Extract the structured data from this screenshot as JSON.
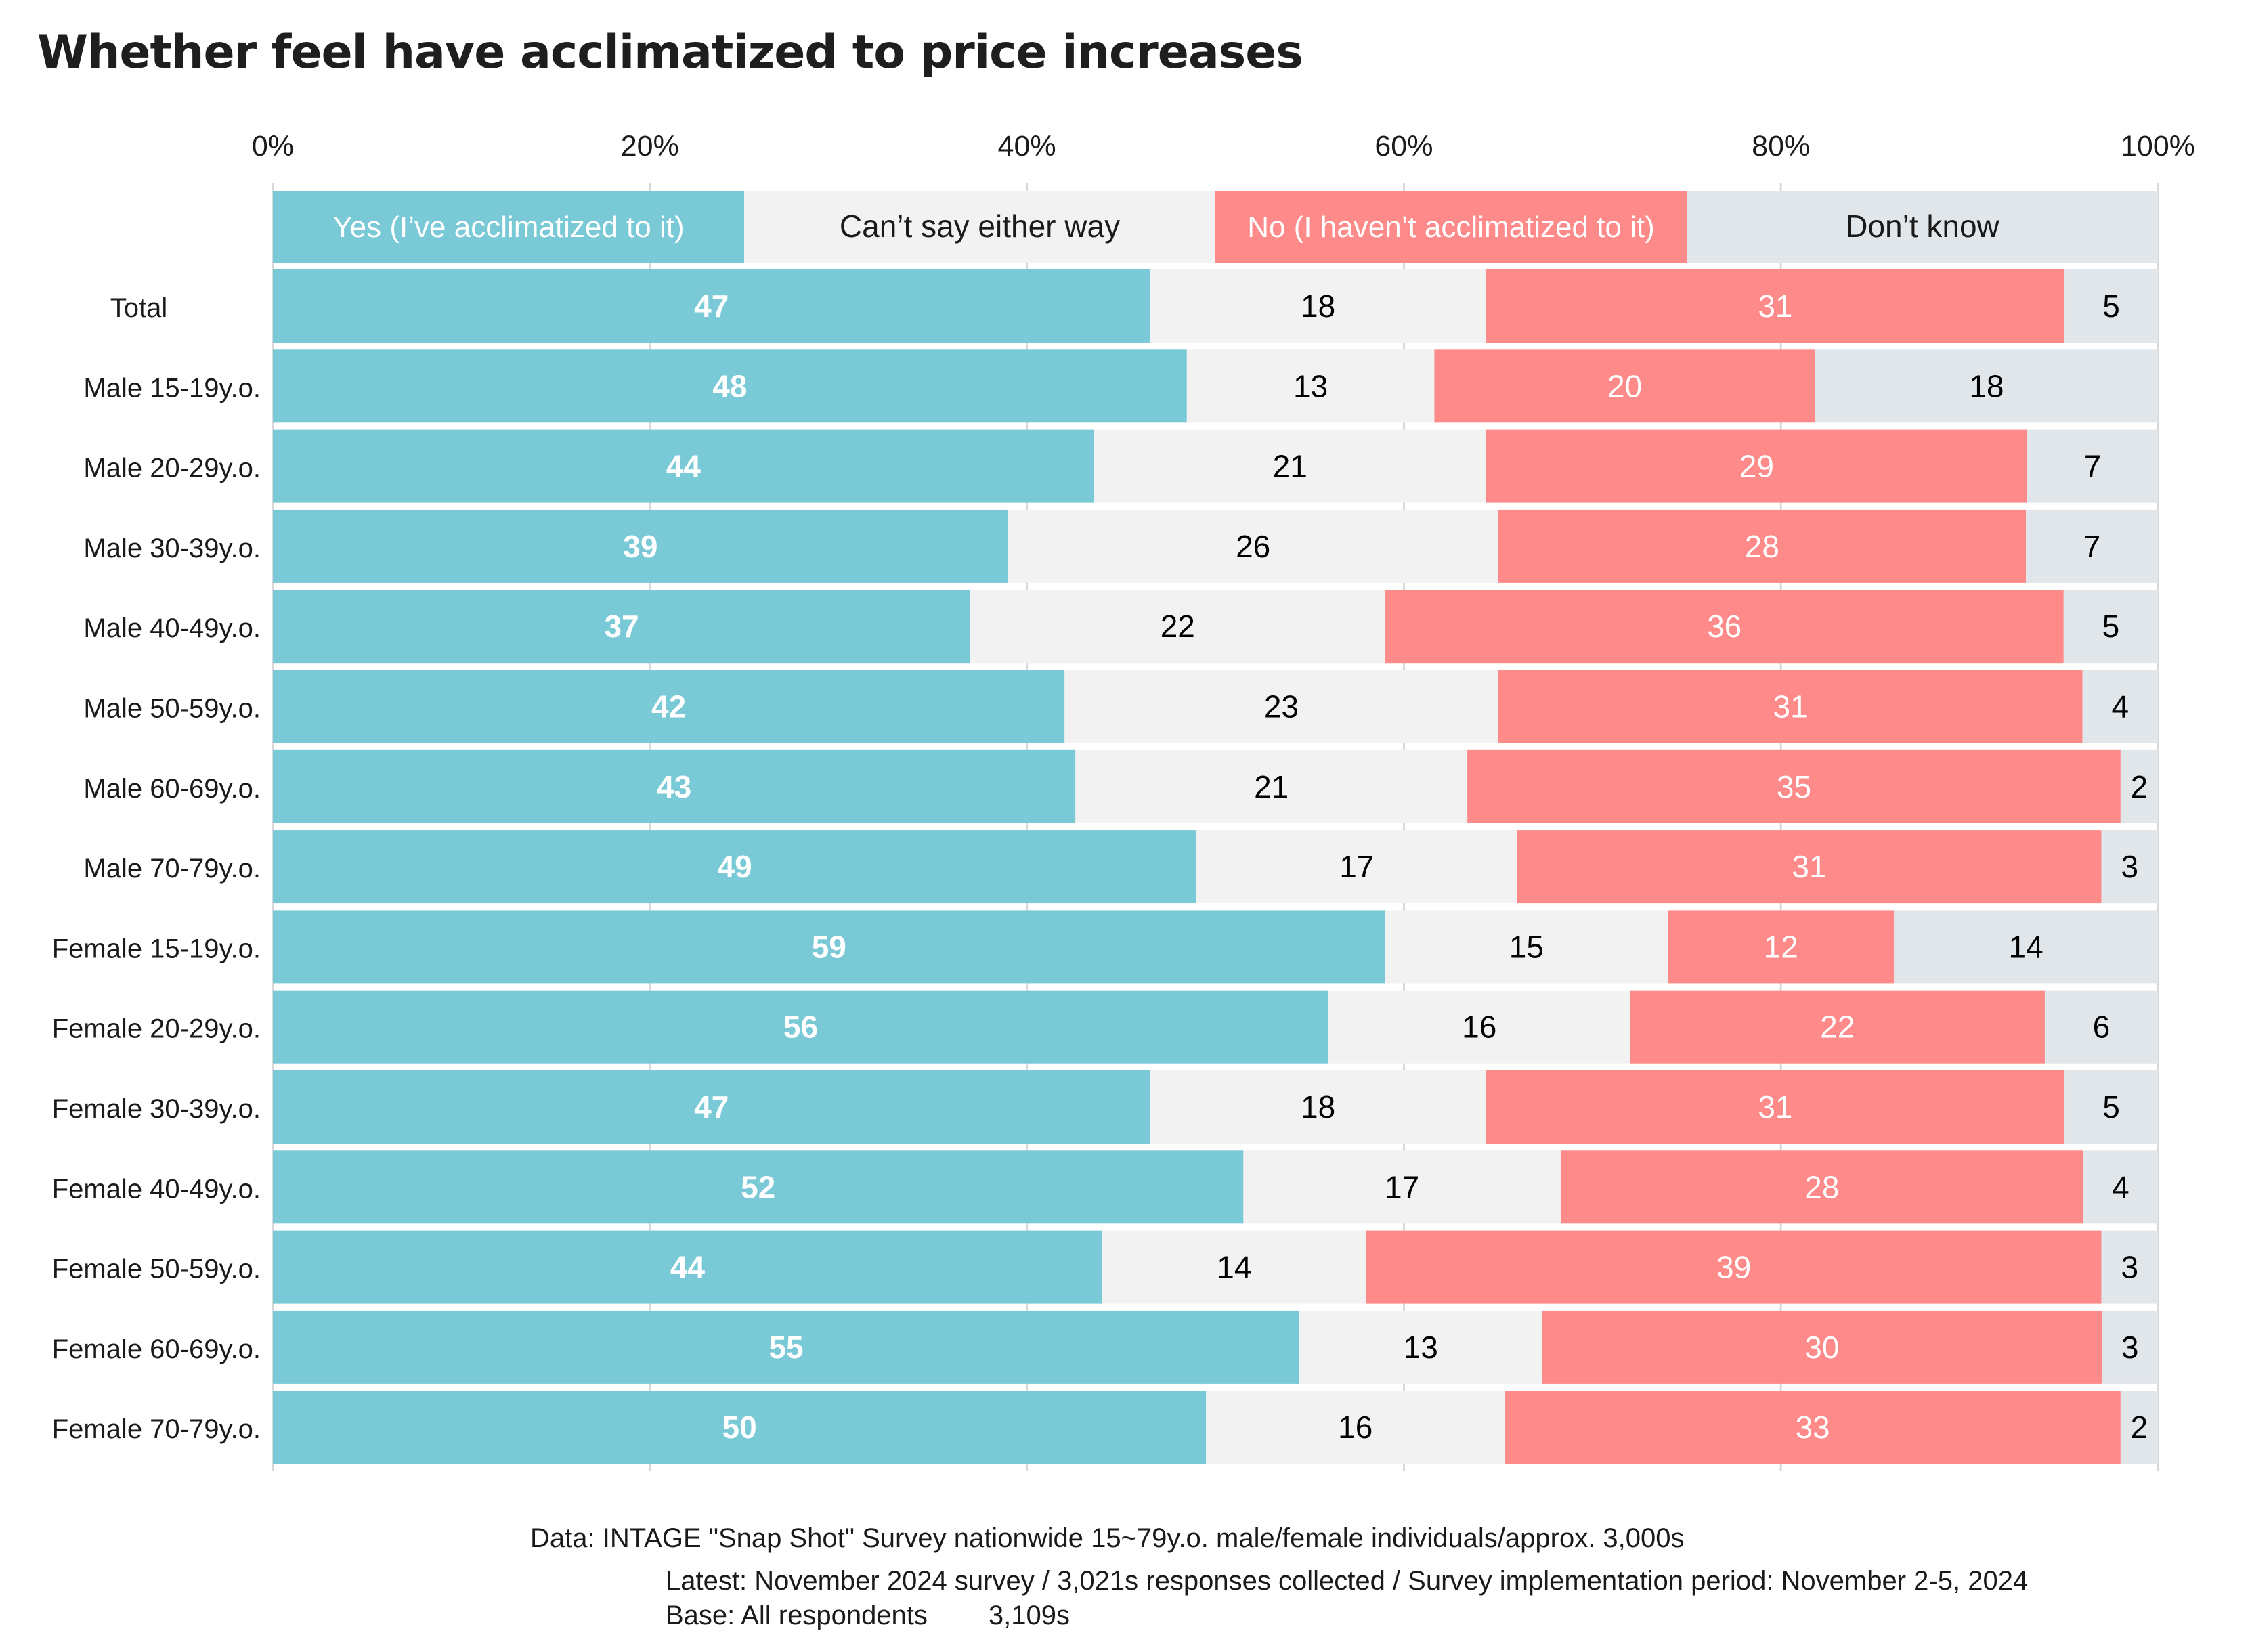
{
  "title": "Whether feel have acclimatized to price increases",
  "chart_data": {
    "type": "bar",
    "orientation": "horizontal",
    "stacked": true,
    "percent_stacked": true,
    "title": "Whether feel have acclimatized to price increases",
    "xlabel": "",
    "ylabel": "",
    "xlim": [
      0,
      100
    ],
    "x_ticks": [
      "0%",
      "20%",
      "40%",
      "60%",
      "80%",
      "100%"
    ],
    "x_tick_values": [
      0,
      20,
      40,
      60,
      80,
      100
    ],
    "grid": true,
    "legend_position": "top",
    "categories": [
      "Total",
      "Male 15-19y.o.",
      "Male 20-29y.o.",
      "Male 30-39y.o.",
      "Male 40-49y.o.",
      "Male 50-59y.o.",
      "Male 60-69y.o.",
      "Male 70-79y.o.",
      "Female 15-19y.o.",
      "Female 20-29y.o.",
      "Female 30-39y.o.",
      "Female 40-49y.o.",
      "Female 50-59y.o.",
      "Female 60-69y.o.",
      "Female 70-79y.o."
    ],
    "series": [
      {
        "name": "Yes (I’ve acclimatized to it)",
        "color": "#79c9d6",
        "label_color": "#ffffff",
        "label_bold": true,
        "values": [
          47,
          48,
          44,
          39,
          37,
          42,
          43,
          49,
          59,
          56,
          47,
          52,
          44,
          55,
          50
        ]
      },
      {
        "name": "Can’t say either way",
        "color": "#f2f2f2",
        "label_color": "#000000",
        "label_bold": false,
        "values": [
          18,
          13,
          21,
          26,
          22,
          23,
          21,
          17,
          15,
          16,
          18,
          17,
          14,
          13,
          16
        ]
      },
      {
        "name": "No (I haven’t acclimatized to it)",
        "color": "#ff8a8a",
        "label_color": "#ffffff",
        "label_bold": false,
        "values": [
          31,
          20,
          29,
          28,
          36,
          31,
          35,
          31,
          12,
          22,
          31,
          28,
          39,
          30,
          33
        ]
      },
      {
        "name": "Don’t know",
        "color": "#e1e6ea",
        "label_color": "#000000",
        "label_bold": false,
        "values": [
          5,
          18,
          7,
          7,
          5,
          4,
          2,
          3,
          14,
          6,
          5,
          4,
          3,
          3,
          2
        ]
      }
    ],
    "legend": [
      {
        "label": "Yes (I’ve acclimatized to it)",
        "text_color": "#ffffff"
      },
      {
        "label": "Can’t say either way",
        "text_color": "#1a1a1a"
      },
      {
        "label": "No (I haven’t acclimatized to it)",
        "text_color": "#ffffff"
      },
      {
        "label": "Don’t know",
        "text_color": "#1a1a1a"
      }
    ]
  },
  "footer": {
    "data_source": "Data: INTAGE \"Snap Shot\" Survey nationwide 15~79y.o. male/female individuals/approx. 3,000s",
    "latest": "Latest: November 2024 survey / 3,021s responses collected / Survey implementation period: November 2-5, 2024",
    "base_label": "Base: All respondents",
    "base_value": "3,109s"
  }
}
